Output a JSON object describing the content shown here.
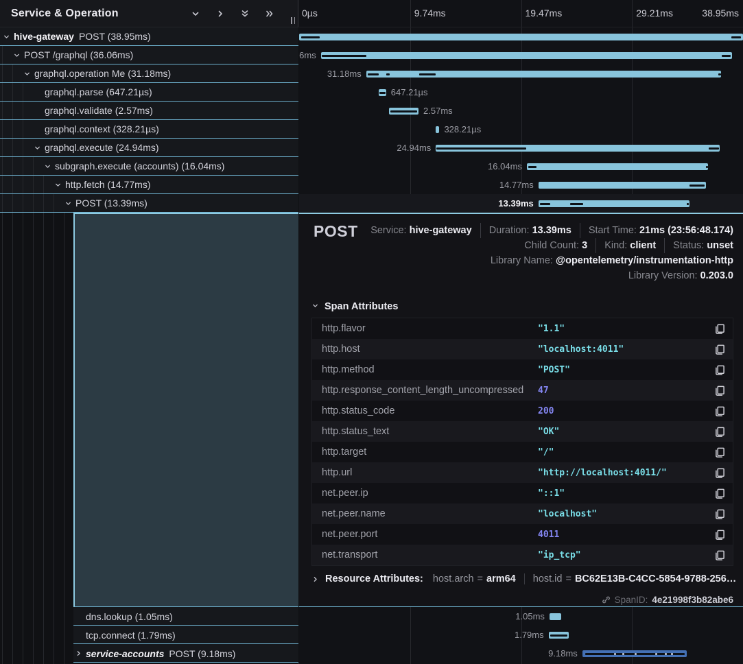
{
  "tree_header": {
    "title": "Service & Operation",
    "icons": [
      "chevron-down",
      "chevron-right",
      "double-chevron-down",
      "double-chevron-right"
    ]
  },
  "axis": {
    "ticks": [
      {
        "label": "0µs",
        "pos": 0
      },
      {
        "label": "9.74ms",
        "pos": 25
      },
      {
        "label": "19.47ms",
        "pos": 50
      },
      {
        "label": "29.21ms",
        "pos": 75
      },
      {
        "label": "38.95ms",
        "pos": 100
      }
    ]
  },
  "colors": {
    "bar": "#88c4dc",
    "bar_alt": "#4470b4",
    "row_underline": "#6fb3d1",
    "accent_border": "#8ecbe2",
    "value_string": "#7adfe9",
    "value_number": "#8486f2"
  },
  "spans": [
    {
      "tree_label": "POST (38.95ms)",
      "service": "hive-gateway",
      "service_italic": false,
      "depth": 0,
      "chevron": "down",
      "duration_label": "38.95ms",
      "label_side": "left",
      "selected": false,
      "bar": {
        "start_pct": 0,
        "width_pct": 100
      },
      "ticks": [
        [
          0.4,
          4.2
        ],
        [
          97.3,
          2.3
        ]
      ],
      "dots": []
    },
    {
      "tree_label": "POST /graphql (36.06ms)",
      "service": null,
      "service_italic": false,
      "depth": 1,
      "chevron": "down",
      "duration_label": "36.06ms",
      "label_side": "left",
      "selected": false,
      "bar": {
        "start_pct": 4.9,
        "width_pct": 92.6
      },
      "ticks": [
        [
          5.1,
          10.0
        ],
        [
          95.2,
          2.0
        ]
      ],
      "dots": []
    },
    {
      "tree_label": "graphql.operation Me (31.18ms)",
      "service": null,
      "service_italic": false,
      "depth": 2,
      "chevron": "down",
      "duration_label": "31.18ms",
      "label_side": "left",
      "selected": false,
      "bar": {
        "start_pct": 15.1,
        "width_pct": 80.0
      },
      "ticks": [
        [
          15.4,
          2.6
        ],
        [
          19.6,
          0.8
        ],
        [
          27.1,
          3.6
        ],
        [
          94.5,
          0.5
        ]
      ],
      "dots": []
    },
    {
      "tree_label": "graphql.parse (647.21µs)",
      "service": null,
      "service_italic": false,
      "depth": 3,
      "chevron": null,
      "duration_label": "647.21µs",
      "label_side": "right",
      "selected": false,
      "bar": {
        "start_pct": 17.9,
        "width_pct": 1.7
      },
      "ticks": [
        [
          18.1,
          1.3
        ]
      ],
      "dots": []
    },
    {
      "tree_label": "graphql.validate (2.57ms)",
      "service": null,
      "service_italic": false,
      "depth": 3,
      "chevron": null,
      "duration_label": "2.57ms",
      "label_side": "right",
      "selected": false,
      "bar": {
        "start_pct": 20.3,
        "width_pct": 6.6
      },
      "ticks": [
        [
          20.6,
          6.0
        ]
      ],
      "dots": []
    },
    {
      "tree_label": "graphql.context (328.21µs)",
      "service": null,
      "service_italic": false,
      "depth": 3,
      "chevron": null,
      "duration_label": "328.21µs",
      "label_side": "right",
      "selected": false,
      "bar": {
        "start_pct": 30.7,
        "width_pct": 0.9
      },
      "ticks": [],
      "dots": []
    },
    {
      "tree_label": "graphql.execute (24.94ms)",
      "service": null,
      "service_italic": false,
      "depth": 3,
      "chevron": "down",
      "duration_label": "24.94ms",
      "label_side": "left",
      "selected": false,
      "bar": {
        "start_pct": 30.8,
        "width_pct": 63.9
      },
      "ticks": [
        [
          30.9,
          20.2
        ],
        [
          92.3,
          2.3
        ]
      ],
      "dots": []
    },
    {
      "tree_label": "subgraph.execute (accounts) (16.04ms)",
      "service": null,
      "service_italic": false,
      "depth": 4,
      "chevron": "down",
      "duration_label": "16.04ms",
      "label_side": "left",
      "selected": false,
      "bar": {
        "start_pct": 51.3,
        "width_pct": 40.8
      },
      "ticks": [
        [
          51.6,
          1.9
        ],
        [
          91.6,
          0.5
        ]
      ],
      "dots": []
    },
    {
      "tree_label": "http.fetch (14.77ms)",
      "service": null,
      "service_italic": false,
      "depth": 5,
      "chevron": "down",
      "duration_label": "14.77ms",
      "label_side": "left",
      "selected": false,
      "bar": {
        "start_pct": 53.9,
        "width_pct": 37.7
      },
      "ticks": [
        [
          88.0,
          3.3
        ]
      ],
      "dots": []
    },
    {
      "tree_label": "POST (13.39ms)",
      "service": null,
      "service_italic": false,
      "depth": 6,
      "chevron": "down",
      "duration_label": "13.39ms",
      "label_side": "left",
      "selected": true,
      "bar": {
        "start_pct": 53.9,
        "width_pct": 34.0
      },
      "ticks": [
        [
          54.2,
          2.4
        ],
        [
          61.0,
          3.0
        ],
        [
          87.3,
          0.5
        ]
      ],
      "dots": []
    },
    {
      "tree_label": "dns.lookup (1.05ms)",
      "service": null,
      "service_italic": false,
      "depth": 7,
      "chevron": null,
      "duration_label": "1.05ms",
      "label_side": "left",
      "selected": false,
      "bar": {
        "start_pct": 56.4,
        "width_pct": 2.7
      },
      "ticks": [],
      "dots": []
    },
    {
      "tree_label": "tcp.connect (1.79ms)",
      "service": null,
      "service_italic": false,
      "depth": 7,
      "chevron": null,
      "duration_label": "1.79ms",
      "label_side": "left",
      "selected": false,
      "bar": {
        "start_pct": 56.2,
        "width_pct": 4.6
      },
      "ticks": [
        [
          56.5,
          4.0
        ]
      ],
      "dots": []
    },
    {
      "tree_label": "POST (9.18ms)",
      "service": "service-accounts",
      "service_italic": true,
      "depth": 7,
      "chevron": "right",
      "duration_label": "9.18ms",
      "label_side": "left",
      "selected": false,
      "bar": {
        "start_pct": 63.8,
        "width_pct": 23.6,
        "color": "#4470b4"
      },
      "ticks": [
        [
          64.4,
          22.4
        ]
      ],
      "dots": [
        71,
        72.8,
        75.6,
        80.2,
        82.4,
        83.8
      ]
    }
  ],
  "detail": {
    "title": "POST",
    "meta": [
      [
        {
          "label": "Service:",
          "value": "hive-gateway"
        },
        {
          "label": "Duration:",
          "value": "13.39ms"
        },
        {
          "label": "Start Time:",
          "value": "21ms (23:56:48.174)"
        }
      ],
      [
        {
          "label": "Child Count:",
          "value": "3"
        },
        {
          "label": "Kind:",
          "value": "client"
        },
        {
          "label": "Status:",
          "value": "unset"
        }
      ],
      [
        {
          "label": "Library Name:",
          "value": "@opentelemetry/instrumentation-http"
        }
      ],
      [
        {
          "label": "Library Version:",
          "value": "0.203.0"
        }
      ]
    ],
    "section_title": "Span Attributes",
    "attributes": [
      {
        "key": "http.flavor",
        "value": "\"1.1\"",
        "type": "string"
      },
      {
        "key": "http.host",
        "value": "\"localhost:4011\"",
        "type": "string"
      },
      {
        "key": "http.method",
        "value": "\"POST\"",
        "type": "string"
      },
      {
        "key": "http.response_content_length_uncompressed",
        "value": "47",
        "type": "number"
      },
      {
        "key": "http.status_code",
        "value": "200",
        "type": "number"
      },
      {
        "key": "http.status_text",
        "value": "\"OK\"",
        "type": "string"
      },
      {
        "key": "http.target",
        "value": "\"/\"",
        "type": "string"
      },
      {
        "key": "http.url",
        "value": "\"http://localhost:4011/\"",
        "type": "string"
      },
      {
        "key": "net.peer.ip",
        "value": "\"::1\"",
        "type": "string"
      },
      {
        "key": "net.peer.name",
        "value": "\"localhost\"",
        "type": "string"
      },
      {
        "key": "net.peer.port",
        "value": "4011",
        "type": "number"
      },
      {
        "key": "net.transport",
        "value": "\"ip_tcp\"",
        "type": "string"
      }
    ],
    "resource": {
      "title": "Resource Attributes:",
      "pairs": [
        {
          "key": "host.arch",
          "value": "arm64"
        },
        {
          "key": "host.id",
          "value": "BC62E13B-C4CC-5854-9788-256…"
        }
      ]
    },
    "span_id": {
      "label": "SpanID:",
      "value": "4e21998f3b82abe6"
    }
  }
}
